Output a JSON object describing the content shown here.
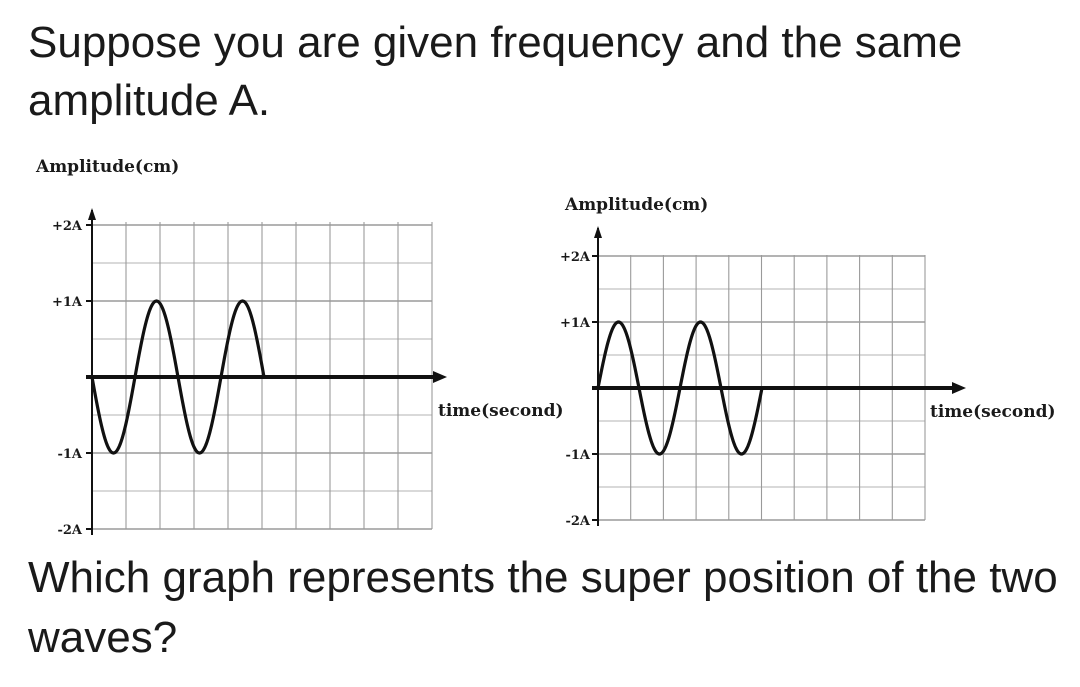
{
  "question": {
    "intro": "Suppose you are given frequency and the same amplitude A.",
    "prompt": "Which graph represents the super position of the two waves?"
  },
  "colors": {
    "grid": "#9a9a9a",
    "axis": "#111111",
    "curve": "#111111"
  },
  "chart_data": [
    {
      "type": "line",
      "ylabel": "Amplitude(cm)",
      "xlabel": "time(second)",
      "y_ticks": [
        "+2A",
        "+1A",
        "-1A",
        "-2A"
      ],
      "y_tick_values": [
        2,
        1,
        -1,
        -2
      ],
      "ylim": [
        -2,
        2
      ],
      "grid": true,
      "series": [
        {
          "x": [
            0,
            0.5,
            1,
            1.5,
            2,
            2.5,
            3,
            3.5,
            4
          ],
          "y": [
            0,
            -1,
            0,
            1,
            0,
            -1,
            0,
            1,
            0
          ]
        }
      ]
    },
    {
      "type": "line",
      "ylabel": "Amplitude(cm)",
      "xlabel": "time(second)",
      "y_ticks": [
        "+2A",
        "+1A",
        "-1A",
        "-2A"
      ],
      "y_tick_values": [
        2,
        1,
        -1,
        -2
      ],
      "ylim": [
        -2,
        2
      ],
      "grid": true,
      "series": [
        {
          "x": [
            0,
            0.5,
            1,
            1.5,
            2,
            2.5,
            3,
            3.5,
            4,
            4.5
          ],
          "y": [
            0,
            1,
            0,
            -1,
            0,
            1,
            0,
            -1,
            0,
            0
          ]
        }
      ]
    }
  ]
}
